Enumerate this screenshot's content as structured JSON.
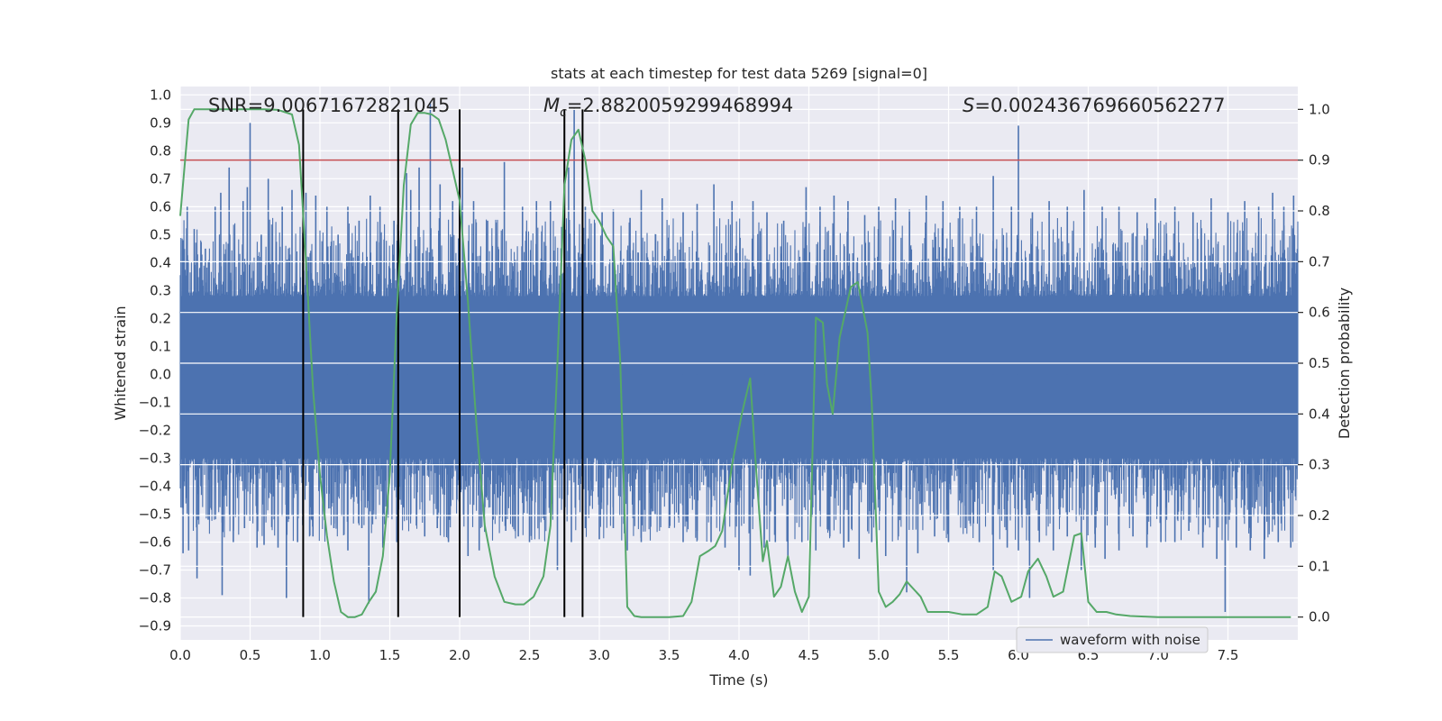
{
  "chart_data": {
    "type": "line",
    "title": "stats at each timestep for test data 5269 [signal=0]",
    "xlabel": "Time (s)",
    "ylabel_left": "Whitened strain",
    "ylabel_right": "Detection probability",
    "xlim": [
      0.0,
      8.0
    ],
    "ylim_left": [
      -0.95,
      1.03
    ],
    "ylim_right": [
      -0.045,
      1.045
    ],
    "xticks": [
      0.0,
      0.5,
      1.0,
      1.5,
      2.0,
      2.5,
      3.0,
      3.5,
      4.0,
      4.5,
      5.0,
      5.5,
      6.0,
      6.5,
      7.0,
      7.5
    ],
    "xtick_labels": [
      "0.0",
      "0.5",
      "1.0",
      "1.5",
      "2.0",
      "2.5",
      "3.0",
      "3.5",
      "4.0",
      "4.5",
      "5.0",
      "5.5",
      "6.0",
      "6.5",
      "7.0",
      "7.5"
    ],
    "yticks_left": [
      1.0,
      0.9,
      0.8,
      0.7,
      0.6,
      0.5,
      0.4,
      0.3,
      0.2,
      0.1,
      0.0,
      -0.1,
      -0.2,
      -0.3,
      -0.4,
      -0.5,
      -0.6,
      -0.7,
      -0.8,
      -0.9
    ],
    "ytick_labels_left": [
      "1.0",
      "0.9",
      "0.8",
      "0.7",
      "0.6",
      "0.5",
      "0.4",
      "0.3",
      "0.2",
      "0.1",
      "0.0",
      "−0.1",
      "−0.2",
      "−0.3",
      "−0.4",
      "−0.5",
      "−0.6",
      "−0.7",
      "−0.8",
      "−0.9"
    ],
    "yticks_right": [
      1.0,
      0.9,
      0.8,
      0.7,
      0.6,
      0.5,
      0.4,
      0.3,
      0.2,
      0.1,
      0.0
    ],
    "ytick_labels_right": [
      "1.0",
      "0.9",
      "0.8",
      "0.7",
      "0.6",
      "0.5",
      "0.4",
      "0.3",
      "0.2",
      "0.1",
      "0.0"
    ],
    "annotations": [
      {
        "text_pre": "SNR=",
        "italic": "",
        "sub": "",
        "value": "9.00671672821045",
        "x": 0.2
      },
      {
        "text_pre": "",
        "italic": "M",
        "sub": "c",
        "value": "=2.8820059299468994",
        "x": 2.6
      },
      {
        "text_pre": "",
        "italic": "S",
        "sub": "",
        "value": "=0.002436769660562277",
        "x": 5.6
      }
    ],
    "threshold": {
      "value": 0.9,
      "axis": "right",
      "color": "#c44e52"
    },
    "vlines": [
      0.88,
      1.56,
      2.0,
      2.75,
      2.88
    ],
    "waveform": {
      "name": "waveform with noise",
      "color": "#4c72b0",
      "dense_band": [
        -0.3,
        0.28
      ],
      "spikes_up": [
        [
          0.02,
          0.48
        ],
        [
          0.05,
          0.6
        ],
        [
          0.1,
          0.52
        ],
        [
          0.18,
          0.45
        ],
        [
          0.25,
          0.6
        ],
        [
          0.29,
          0.65
        ],
        [
          0.35,
          0.74
        ],
        [
          0.45,
          0.62
        ],
        [
          0.48,
          0.67
        ],
        [
          0.5,
          0.9
        ],
        [
          0.58,
          0.5
        ],
        [
          0.63,
          0.7
        ],
        [
          0.73,
          0.6
        ],
        [
          0.8,
          0.66
        ],
        [
          0.9,
          0.65
        ],
        [
          0.97,
          0.64
        ],
        [
          1.05,
          0.6
        ],
        [
          1.13,
          0.5
        ],
        [
          1.2,
          0.6
        ],
        [
          1.28,
          0.55
        ],
        [
          1.36,
          0.64
        ],
        [
          1.43,
          0.6
        ],
        [
          1.53,
          0.55
        ],
        [
          1.62,
          0.72
        ],
        [
          1.65,
          0.66
        ],
        [
          1.71,
          0.74
        ],
        [
          1.79,
          0.97
        ],
        [
          1.86,
          0.68
        ],
        [
          1.95,
          0.62
        ],
        [
          2.02,
          0.74
        ],
        [
          2.1,
          0.62
        ],
        [
          2.2,
          0.55
        ],
        [
          2.32,
          0.76
        ],
        [
          2.45,
          0.6
        ],
        [
          2.55,
          0.62
        ],
        [
          2.65,
          0.62
        ],
        [
          2.78,
          0.74
        ],
        [
          2.82,
          0.95
        ],
        [
          2.9,
          0.6
        ],
        [
          3.02,
          0.58
        ],
        [
          3.1,
          0.59
        ],
        [
          3.22,
          0.56
        ],
        [
          3.3,
          0.66
        ],
        [
          3.45,
          0.63
        ],
        [
          3.6,
          0.58
        ],
        [
          3.7,
          0.61
        ],
        [
          3.82,
          0.68
        ],
        [
          3.95,
          0.62
        ],
        [
          4.1,
          0.62
        ],
        [
          4.2,
          0.58
        ],
        [
          4.32,
          0.55
        ],
        [
          4.48,
          0.67
        ],
        [
          4.58,
          0.6
        ],
        [
          4.68,
          0.64
        ],
        [
          4.78,
          0.62
        ],
        [
          4.9,
          0.57
        ],
        [
          5.0,
          0.6
        ],
        [
          5.12,
          0.63
        ],
        [
          5.22,
          0.59
        ],
        [
          5.34,
          0.64
        ],
        [
          5.46,
          0.62
        ],
        [
          5.58,
          0.6
        ],
        [
          5.7,
          0.6
        ],
        [
          5.82,
          0.71
        ],
        [
          5.95,
          0.6
        ],
        [
          6.0,
          0.89
        ],
        [
          6.1,
          0.58
        ],
        [
          6.22,
          0.62
        ],
        [
          6.35,
          0.6
        ],
        [
          6.47,
          0.66
        ],
        [
          6.6,
          0.6
        ],
        [
          6.72,
          0.6
        ],
        [
          6.85,
          0.58
        ],
        [
          6.98,
          0.63
        ],
        [
          7.12,
          0.6
        ],
        [
          7.25,
          0.58
        ],
        [
          7.38,
          0.63
        ],
        [
          7.5,
          0.58
        ],
        [
          7.62,
          0.62
        ],
        [
          7.72,
          0.6
        ],
        [
          7.82,
          0.65
        ],
        [
          7.9,
          0.6
        ],
        [
          7.97,
          0.64
        ]
      ],
      "spikes_down": [
        [
          0.02,
          -0.64
        ],
        [
          0.06,
          -0.63
        ],
        [
          0.12,
          -0.73
        ],
        [
          0.2,
          -0.52
        ],
        [
          0.3,
          -0.79
        ],
        [
          0.38,
          -0.6
        ],
        [
          0.46,
          -0.55
        ],
        [
          0.55,
          -0.62
        ],
        [
          0.6,
          -0.61
        ],
        [
          0.7,
          -0.62
        ],
        [
          0.76,
          -0.8
        ],
        [
          0.84,
          -0.6
        ],
        [
          0.95,
          -0.58
        ],
        [
          1.03,
          -0.5
        ],
        [
          1.1,
          -0.55
        ],
        [
          1.2,
          -0.63
        ],
        [
          1.3,
          -0.55
        ],
        [
          1.35,
          -0.82
        ],
        [
          1.45,
          -0.62
        ],
        [
          1.55,
          -0.6
        ],
        [
          1.65,
          -0.5
        ],
        [
          1.75,
          -0.58
        ],
        [
          1.84,
          -0.55
        ],
        [
          1.92,
          -0.6
        ],
        [
          2.06,
          -0.65
        ],
        [
          2.14,
          -0.63
        ],
        [
          2.24,
          -0.52
        ],
        [
          2.33,
          -0.56
        ],
        [
          2.42,
          -0.58
        ],
        [
          2.5,
          -0.6
        ],
        [
          2.6,
          -0.5
        ],
        [
          2.7,
          -0.7
        ],
        [
          2.8,
          -0.6
        ],
        [
          2.9,
          -0.55
        ],
        [
          3.0,
          -0.59
        ],
        [
          3.1,
          -0.55
        ],
        [
          3.2,
          -0.63
        ],
        [
          3.3,
          -0.6
        ],
        [
          3.4,
          -0.5
        ],
        [
          3.5,
          -0.55
        ],
        [
          3.6,
          -0.6
        ],
        [
          3.7,
          -0.56
        ],
        [
          3.8,
          -0.6
        ],
        [
          3.9,
          -0.62
        ],
        [
          4.0,
          -0.7
        ],
        [
          4.08,
          -0.72
        ],
        [
          4.18,
          -0.62
        ],
        [
          4.26,
          -0.6
        ],
        [
          4.35,
          -0.65
        ],
        [
          4.45,
          -0.6
        ],
        [
          4.55,
          -0.63
        ],
        [
          4.65,
          -0.58
        ],
        [
          4.75,
          -0.62
        ],
        [
          4.86,
          -0.66
        ],
        [
          4.95,
          -0.6
        ],
        [
          5.05,
          -0.65
        ],
        [
          5.2,
          -0.78
        ],
        [
          5.28,
          -0.64
        ],
        [
          5.4,
          -0.58
        ],
        [
          5.5,
          -0.6
        ],
        [
          5.62,
          -0.55
        ],
        [
          5.72,
          -0.6
        ],
        [
          5.82,
          -0.7
        ],
        [
          5.92,
          -0.62
        ],
        [
          6.0,
          -0.63
        ],
        [
          6.08,
          -0.8
        ],
        [
          6.15,
          -0.6
        ],
        [
          6.25,
          -0.63
        ],
        [
          6.35,
          -0.58
        ],
        [
          6.45,
          -0.7
        ],
        [
          6.55,
          -0.62
        ],
        [
          6.62,
          -0.66
        ],
        [
          6.72,
          -0.63
        ],
        [
          6.82,
          -0.58
        ],
        [
          6.92,
          -0.62
        ],
        [
          7.02,
          -0.6
        ],
        [
          7.12,
          -0.6
        ],
        [
          7.22,
          -0.56
        ],
        [
          7.32,
          -0.62
        ],
        [
          7.42,
          -0.66
        ],
        [
          7.48,
          -0.85
        ],
        [
          7.56,
          -0.62
        ],
        [
          7.66,
          -0.63
        ],
        [
          7.76,
          -0.66
        ],
        [
          7.86,
          -0.6
        ],
        [
          7.95,
          -0.62
        ]
      ]
    },
    "probability": {
      "color": "#55a868",
      "axis": "right",
      "x": [
        0.0,
        0.06,
        0.1,
        0.2,
        0.3,
        0.4,
        0.5,
        0.6,
        0.7,
        0.8,
        0.85,
        0.9,
        0.95,
        1.0,
        1.05,
        1.1,
        1.15,
        1.2,
        1.25,
        1.3,
        1.35,
        1.4,
        1.45,
        1.5,
        1.55,
        1.6,
        1.65,
        1.7,
        1.75,
        1.8,
        1.85,
        1.9,
        1.95,
        2.0,
        2.06,
        2.12,
        2.18,
        2.25,
        2.32,
        2.4,
        2.46,
        2.53,
        2.6,
        2.65,
        2.7,
        2.75,
        2.8,
        2.85,
        2.9,
        2.95,
        3.0,
        3.05,
        3.1,
        3.15,
        3.2,
        3.25,
        3.3,
        3.4,
        3.5,
        3.6,
        3.66,
        3.72,
        3.78,
        3.83,
        3.88,
        3.95,
        4.02,
        4.08,
        4.12,
        4.17,
        4.2,
        4.25,
        4.3,
        4.35,
        4.4,
        4.45,
        4.5,
        4.55,
        4.6,
        4.63,
        4.67,
        4.72,
        4.8,
        4.85,
        4.92,
        4.95,
        5.0,
        5.05,
        5.1,
        5.15,
        5.2,
        5.3,
        5.35,
        5.4,
        5.45,
        5.5,
        5.6,
        5.7,
        5.78,
        5.83,
        5.88,
        5.95,
        6.02,
        6.07,
        6.14,
        6.2,
        6.25,
        6.32,
        6.4,
        6.45,
        6.5,
        6.56,
        6.63,
        6.7,
        6.8,
        6.9,
        7.0,
        7.2,
        7.5,
        7.8,
        7.95
      ],
      "y": [
        0.79,
        0.98,
        1.0,
        1.0,
        1.0,
        1.0,
        1.0,
        1.0,
        0.999,
        0.99,
        0.93,
        0.7,
        0.45,
        0.28,
        0.16,
        0.07,
        0.01,
        0.0,
        0.0,
        0.005,
        0.03,
        0.05,
        0.12,
        0.28,
        0.6,
        0.85,
        0.97,
        0.993,
        0.993,
        0.99,
        0.98,
        0.94,
        0.88,
        0.82,
        0.62,
        0.38,
        0.18,
        0.08,
        0.03,
        0.025,
        0.025,
        0.04,
        0.08,
        0.18,
        0.5,
        0.85,
        0.94,
        0.96,
        0.9,
        0.8,
        0.78,
        0.75,
        0.73,
        0.5,
        0.02,
        0.002,
        0.0,
        0.0,
        0.0,
        0.002,
        0.03,
        0.12,
        0.13,
        0.14,
        0.17,
        0.3,
        0.4,
        0.47,
        0.3,
        0.11,
        0.15,
        0.04,
        0.06,
        0.12,
        0.05,
        0.01,
        0.04,
        0.59,
        0.58,
        0.46,
        0.4,
        0.55,
        0.65,
        0.66,
        0.56,
        0.42,
        0.05,
        0.02,
        0.03,
        0.045,
        0.07,
        0.04,
        0.01,
        0.01,
        0.01,
        0.01,
        0.005,
        0.005,
        0.02,
        0.09,
        0.08,
        0.03,
        0.04,
        0.09,
        0.115,
        0.08,
        0.04,
        0.05,
        0.16,
        0.165,
        0.03,
        0.01,
        0.01,
        0.005,
        0.002,
        0.001,
        0.0,
        0.0,
        0.0,
        0.0,
        0.0
      ]
    },
    "legend": {
      "position": "lower-right",
      "entries": [
        "waveform with noise"
      ]
    }
  }
}
